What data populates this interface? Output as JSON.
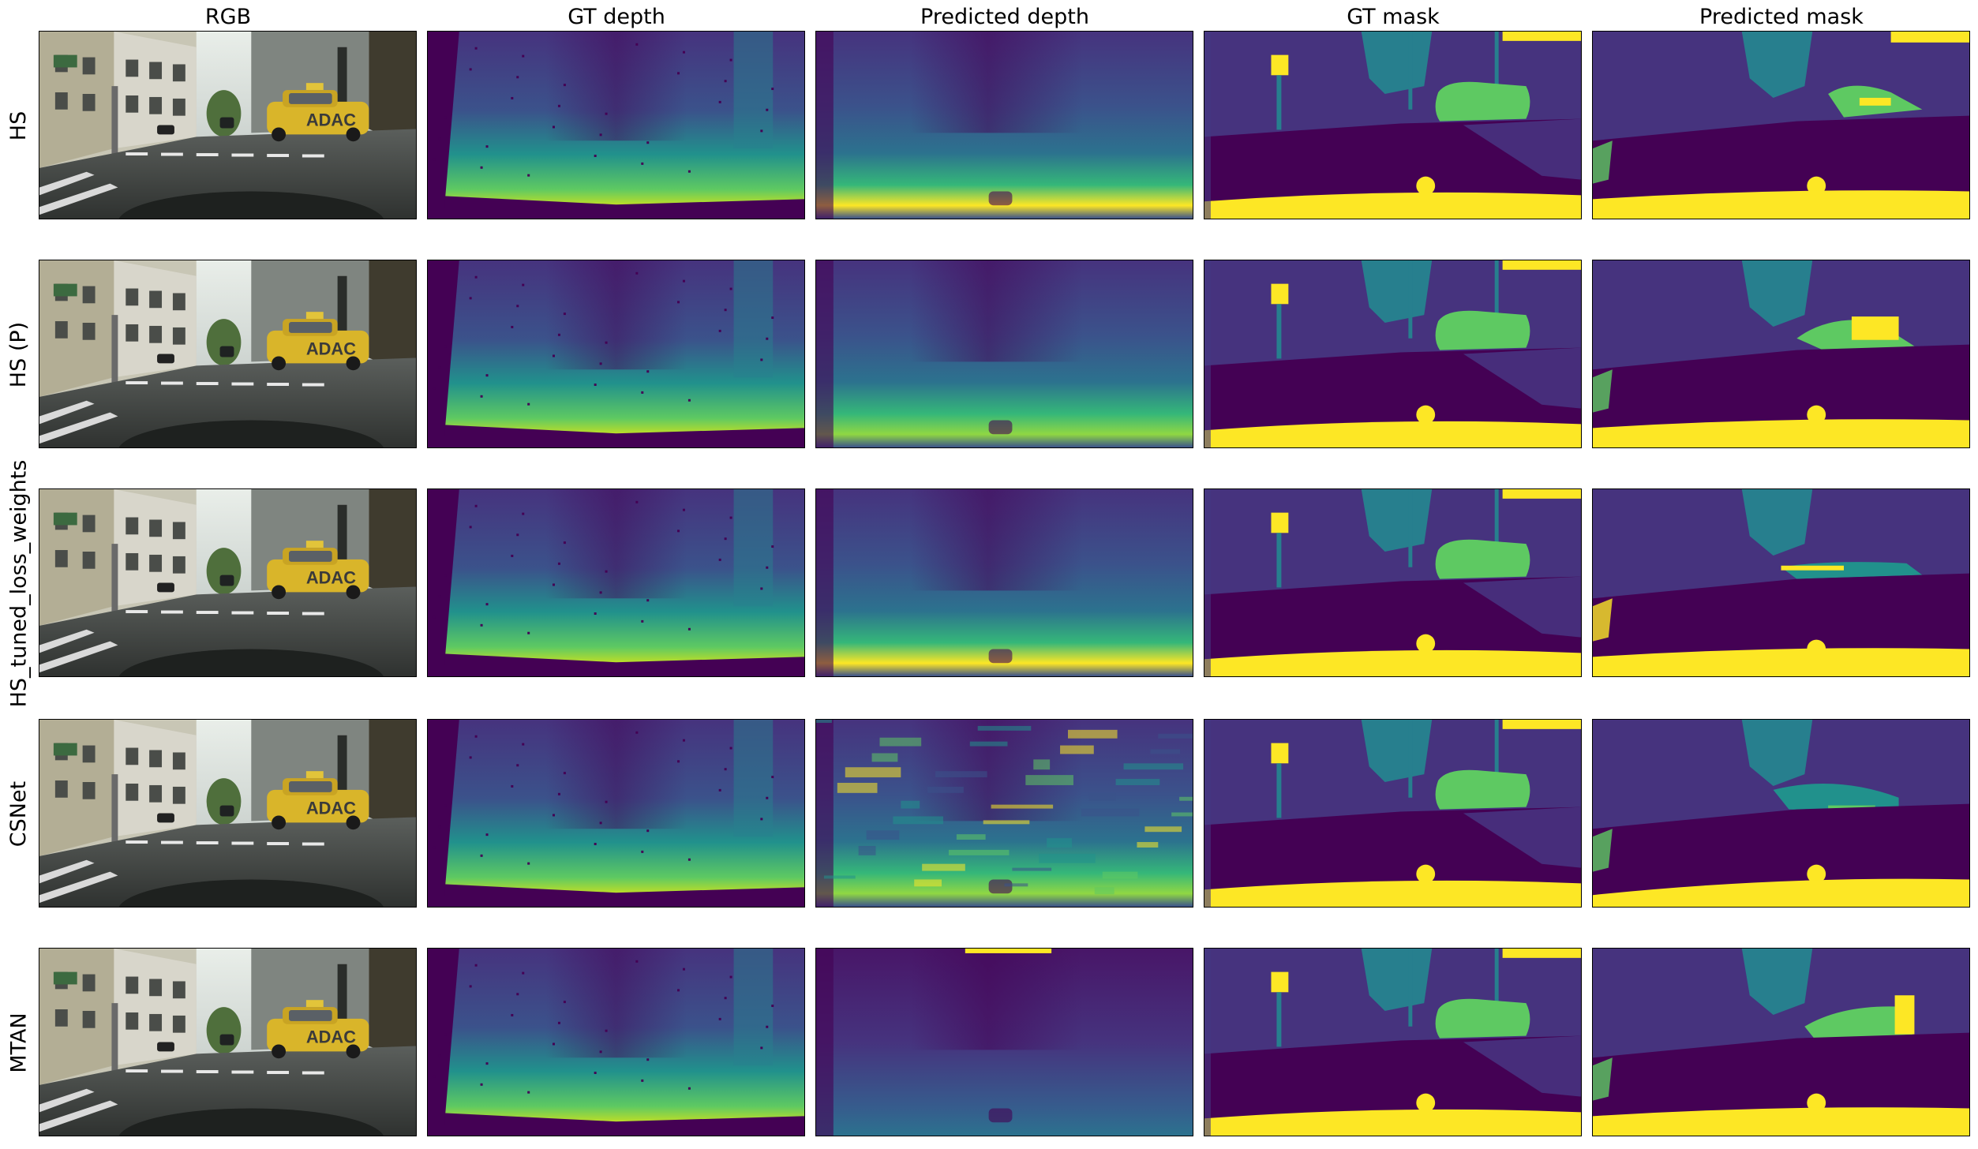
{
  "columns": [
    "RGB",
    "GT depth",
    "Predicted depth",
    "GT mask",
    "Predicted mask"
  ],
  "rows": [
    "HS",
    "HS (P)",
    "HS_tuned_loss_weights",
    "CSNet",
    "MTAN"
  ],
  "image_text": {
    "car_sign": "ADAC"
  },
  "colormap": "viridis",
  "palette": {
    "viridis_dark": "#440154",
    "viridis_purple": "#46337e",
    "viridis_blue": "#365c8d",
    "viridis_teal": "#277f8e",
    "viridis_green": "#4ac16d",
    "viridis_yellow": "#fde725"
  }
}
